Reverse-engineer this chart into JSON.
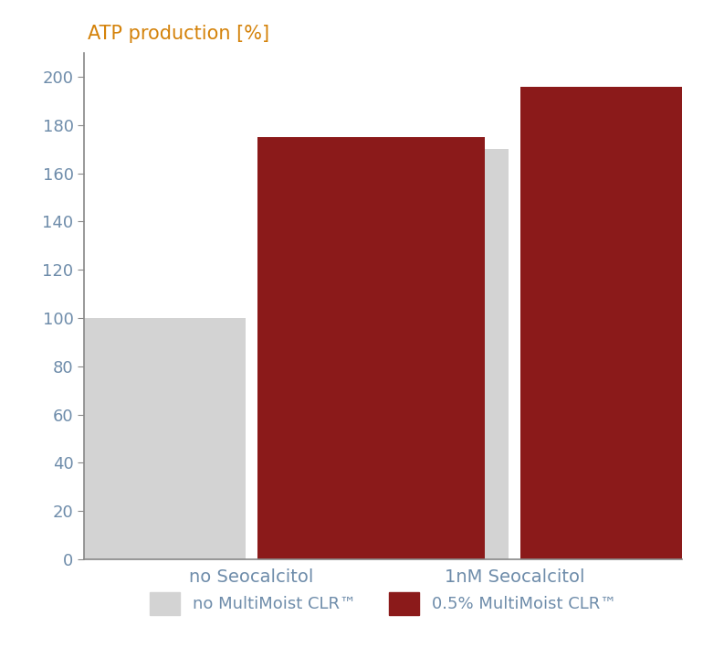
{
  "groups": [
    "no Seocalcitol",
    "1nM Seocalcitol"
  ],
  "series": {
    "no MultiMoist CLR™": [
      100,
      170
    ],
    "0.5% MultiMoist CLR™": [
      175,
      196
    ]
  },
  "bar_colors": {
    "no MultiMoist CLR™": "#d3d3d3",
    "0.5% MultiMoist CLR™": "#8b1a1a"
  },
  "ylabel": "ATP production [%]",
  "ylim": [
    0,
    210
  ],
  "yticks": [
    0,
    20,
    40,
    60,
    80,
    100,
    120,
    140,
    160,
    180,
    200
  ],
  "bar_width": 0.38,
  "background_color": "#ffffff",
  "axis_color": "#888888",
  "tick_color": "#6e8caa",
  "label_color": "#6e8caa",
  "title_color": "#d4820a",
  "legend_color": "#6e8caa",
  "legend_fontsize": 13,
  "ylabel_fontsize": 15,
  "tick_fontsize": 13,
  "xlabel_fontsize": 14,
  "group_positions": [
    0.28,
    0.72
  ]
}
